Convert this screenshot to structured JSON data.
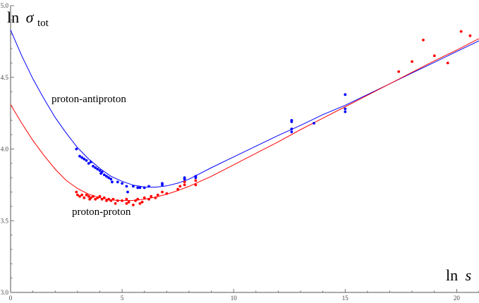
{
  "chart_data": {
    "type": "scatter",
    "xlabel": {
      "prefix": "ln",
      "symbol": "s"
    },
    "ylabel": {
      "prefix": "ln",
      "symbol": "σ",
      "subscript": "tot"
    },
    "xlim": [
      0,
      21
    ],
    "ylim": [
      3.0,
      5.0
    ],
    "x_ticks": [
      0,
      5,
      10,
      15,
      20
    ],
    "x_tick_labels": [
      "0",
      "5",
      "10",
      "15",
      "20"
    ],
    "y_ticks": [
      3.0,
      3.5,
      4.0,
      4.5,
      5.0
    ],
    "y_tick_labels": [
      "3.0",
      "3.5",
      "4.0",
      "4.5",
      "5.0"
    ],
    "minor_x_step": 1,
    "minor_y_step": 0.1,
    "grid": false,
    "series": [
      {
        "name": "proton-antiproton",
        "color": "#0000ff",
        "fit": [
          [
            0.0,
            4.83
          ],
          [
            0.5,
            4.65
          ],
          [
            1.0,
            4.49
          ],
          [
            1.5,
            4.35
          ],
          [
            2.0,
            4.22
          ],
          [
            2.5,
            4.11
          ],
          [
            3.0,
            4.01
          ],
          [
            3.5,
            3.93
          ],
          [
            4.0,
            3.865
          ],
          [
            4.5,
            3.81
          ],
          [
            5.0,
            3.775
          ],
          [
            5.5,
            3.748
          ],
          [
            6.0,
            3.735
          ],
          [
            6.5,
            3.734
          ],
          [
            7.0,
            3.743
          ],
          [
            7.5,
            3.762
          ],
          [
            8.0,
            3.79
          ],
          [
            9.0,
            3.87
          ],
          [
            10.0,
            3.945
          ],
          [
            11.0,
            4.02
          ],
          [
            12.0,
            4.095
          ],
          [
            13.0,
            4.165
          ],
          [
            14.0,
            4.24
          ],
          [
            15.0,
            4.305
          ],
          [
            16.0,
            4.38
          ],
          [
            17.0,
            4.455
          ],
          [
            18.0,
            4.53
          ],
          [
            19.0,
            4.605
          ],
          [
            20.0,
            4.68
          ],
          [
            21.0,
            4.755
          ]
        ],
        "points": [
          [
            2.95,
            4.0
          ],
          [
            3.1,
            3.95
          ],
          [
            3.2,
            3.94
          ],
          [
            3.3,
            3.93
          ],
          [
            3.4,
            3.92
          ],
          [
            3.5,
            3.9
          ],
          [
            3.6,
            3.91
          ],
          [
            3.7,
            3.88
          ],
          [
            3.8,
            3.87
          ],
          [
            3.9,
            3.86
          ],
          [
            4.0,
            3.85
          ],
          [
            4.05,
            3.83
          ],
          [
            4.1,
            3.84
          ],
          [
            4.2,
            3.82
          ],
          [
            4.3,
            3.81
          ],
          [
            4.4,
            3.8
          ],
          [
            4.5,
            3.79
          ],
          [
            4.55,
            3.77
          ],
          [
            4.8,
            3.77
          ],
          [
            5.0,
            3.76
          ],
          [
            5.2,
            3.74
          ],
          [
            5.25,
            3.7
          ],
          [
            5.5,
            3.74
          ],
          [
            5.7,
            3.73
          ],
          [
            5.8,
            3.73
          ],
          [
            6.0,
            3.73
          ],
          [
            6.2,
            3.74
          ],
          [
            6.8,
            3.75
          ],
          [
            6.8,
            3.76
          ],
          [
            7.8,
            3.79
          ],
          [
            7.8,
            3.8
          ],
          [
            8.3,
            3.8
          ],
          [
            8.3,
            3.81
          ],
          [
            12.6,
            4.12
          ],
          [
            12.6,
            4.14
          ],
          [
            12.6,
            4.19
          ],
          [
            12.6,
            4.2
          ],
          [
            13.6,
            4.18
          ],
          [
            15.0,
            4.26
          ],
          [
            15.0,
            4.28
          ],
          [
            15.0,
            4.38
          ]
        ]
      },
      {
        "name": "proton-proton",
        "color": "#ff0000",
        "fit": [
          [
            0.0,
            4.31
          ],
          [
            0.5,
            4.18
          ],
          [
            1.0,
            4.06
          ],
          [
            1.5,
            3.955
          ],
          [
            2.0,
            3.86
          ],
          [
            2.5,
            3.78
          ],
          [
            3.0,
            3.725
          ],
          [
            3.5,
            3.685
          ],
          [
            4.0,
            3.66
          ],
          [
            4.5,
            3.645
          ],
          [
            5.0,
            3.64
          ],
          [
            5.5,
            3.642
          ],
          [
            6.0,
            3.65
          ],
          [
            6.5,
            3.665
          ],
          [
            7.0,
            3.685
          ],
          [
            7.5,
            3.71
          ],
          [
            8.0,
            3.74
          ],
          [
            9.0,
            3.81
          ],
          [
            10.0,
            3.89
          ],
          [
            11.0,
            3.97
          ],
          [
            12.0,
            4.05
          ],
          [
            13.0,
            4.135
          ],
          [
            14.0,
            4.215
          ],
          [
            15.0,
            4.295
          ],
          [
            16.0,
            4.375
          ],
          [
            17.0,
            4.455
          ],
          [
            18.0,
            4.535
          ],
          [
            19.0,
            4.615
          ],
          [
            20.0,
            4.69
          ],
          [
            21.0,
            4.77
          ]
        ],
        "points": [
          [
            2.95,
            3.7
          ],
          [
            3.0,
            3.68
          ],
          [
            3.1,
            3.67
          ],
          [
            3.2,
            3.68
          ],
          [
            3.3,
            3.66
          ],
          [
            3.4,
            3.68
          ],
          [
            3.5,
            3.67
          ],
          [
            3.55,
            3.65
          ],
          [
            3.6,
            3.66
          ],
          [
            3.7,
            3.67
          ],
          [
            3.8,
            3.65
          ],
          [
            3.9,
            3.66
          ],
          [
            4.0,
            3.67
          ],
          [
            4.1,
            3.65
          ],
          [
            4.2,
            3.66
          ],
          [
            4.3,
            3.64
          ],
          [
            4.4,
            3.65
          ],
          [
            4.5,
            3.64
          ],
          [
            4.6,
            3.65
          ],
          [
            4.7,
            3.62
          ],
          [
            4.8,
            3.64
          ],
          [
            5.0,
            3.64
          ],
          [
            5.2,
            3.62
          ],
          [
            5.2,
            3.65
          ],
          [
            5.3,
            3.63
          ],
          [
            5.5,
            3.61
          ],
          [
            5.6,
            3.64
          ],
          [
            5.7,
            3.65
          ],
          [
            5.8,
            3.62
          ],
          [
            5.9,
            3.63
          ],
          [
            6.0,
            3.66
          ],
          [
            6.2,
            3.65
          ],
          [
            6.3,
            3.67
          ],
          [
            6.5,
            3.66
          ],
          [
            6.6,
            3.68
          ],
          [
            6.8,
            3.7
          ],
          [
            7.0,
            3.69
          ],
          [
            7.5,
            3.72
          ],
          [
            7.6,
            3.74
          ],
          [
            7.8,
            3.75
          ],
          [
            7.8,
            3.77
          ],
          [
            8.3,
            3.75
          ],
          [
            8.3,
            3.78
          ],
          [
            17.4,
            4.54
          ],
          [
            18.0,
            4.61
          ],
          [
            18.5,
            4.76
          ],
          [
            19.0,
            4.65
          ],
          [
            19.6,
            4.6
          ],
          [
            20.2,
            4.82
          ],
          [
            20.6,
            4.79
          ]
        ]
      }
    ]
  }
}
